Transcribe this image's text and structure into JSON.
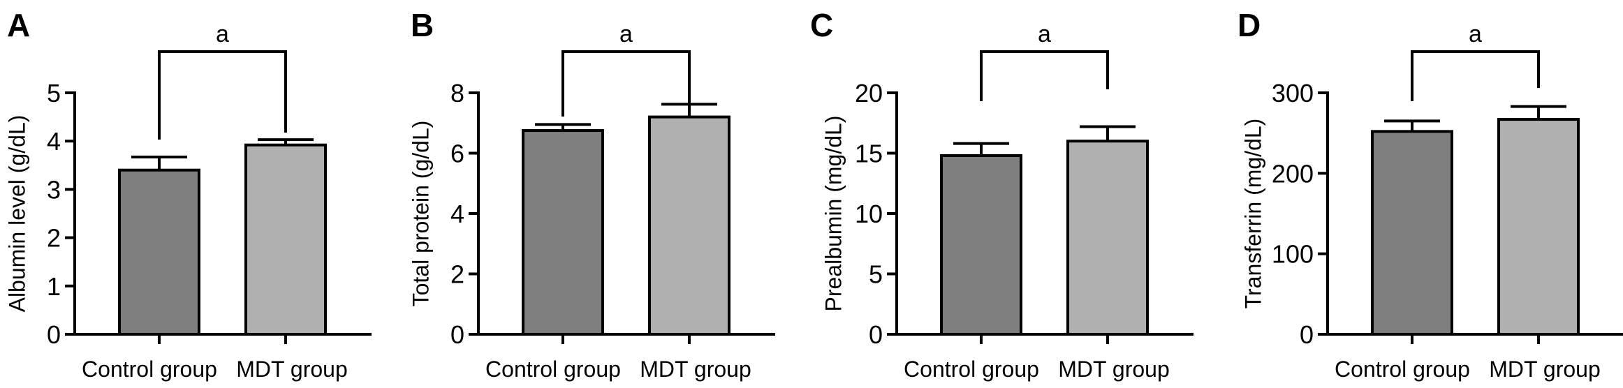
{
  "chart_data": [
    {
      "type": "bar",
      "panel_label": "A",
      "ylabel": "Albumin level (g/dL)",
      "categories": [
        "Control group",
        "MDT group"
      ],
      "values": [
        3.4,
        3.92
      ],
      "errors": [
        0.27,
        0.11
      ],
      "ylim": [
        0,
        5
      ],
      "yticks": [
        0,
        1,
        2,
        3,
        4,
        5
      ],
      "significance": "a",
      "colors": [
        "#7f7f7f",
        "#b0b0b0"
      ],
      "grid": false
    },
    {
      "type": "bar",
      "panel_label": "B",
      "ylabel": "Total protein (g/dL)",
      "categories": [
        "Control group",
        "MDT group"
      ],
      "values": [
        6.75,
        7.2
      ],
      "errors": [
        0.2,
        0.42
      ],
      "ylim": [
        0,
        8
      ],
      "yticks": [
        0,
        2,
        4,
        6,
        8
      ],
      "significance": "a",
      "colors": [
        "#7f7f7f",
        "#b0b0b0"
      ],
      "grid": false
    },
    {
      "type": "bar",
      "panel_label": "C",
      "ylabel": "Prealbumin (mg/dL)",
      "categories": [
        "Control group",
        "MDT group"
      ],
      "values": [
        14.8,
        16.0
      ],
      "errors": [
        1.0,
        1.2
      ],
      "ylim": [
        0,
        20
      ],
      "yticks": [
        0,
        5,
        10,
        15,
        20
      ],
      "significance": "a",
      "colors": [
        "#7f7f7f",
        "#b0b0b0"
      ],
      "grid": false
    },
    {
      "type": "bar",
      "panel_label": "D",
      "ylabel": "Transferrin (mg/dL)",
      "categories": [
        "Control group",
        "MDT group"
      ],
      "values": [
        252,
        267
      ],
      "errors": [
        13,
        16
      ],
      "ylim": [
        0,
        300
      ],
      "yticks": [
        0,
        100,
        200,
        300
      ],
      "significance": "a",
      "colors": [
        "#7f7f7f",
        "#b0b0b0"
      ],
      "grid": false
    }
  ]
}
